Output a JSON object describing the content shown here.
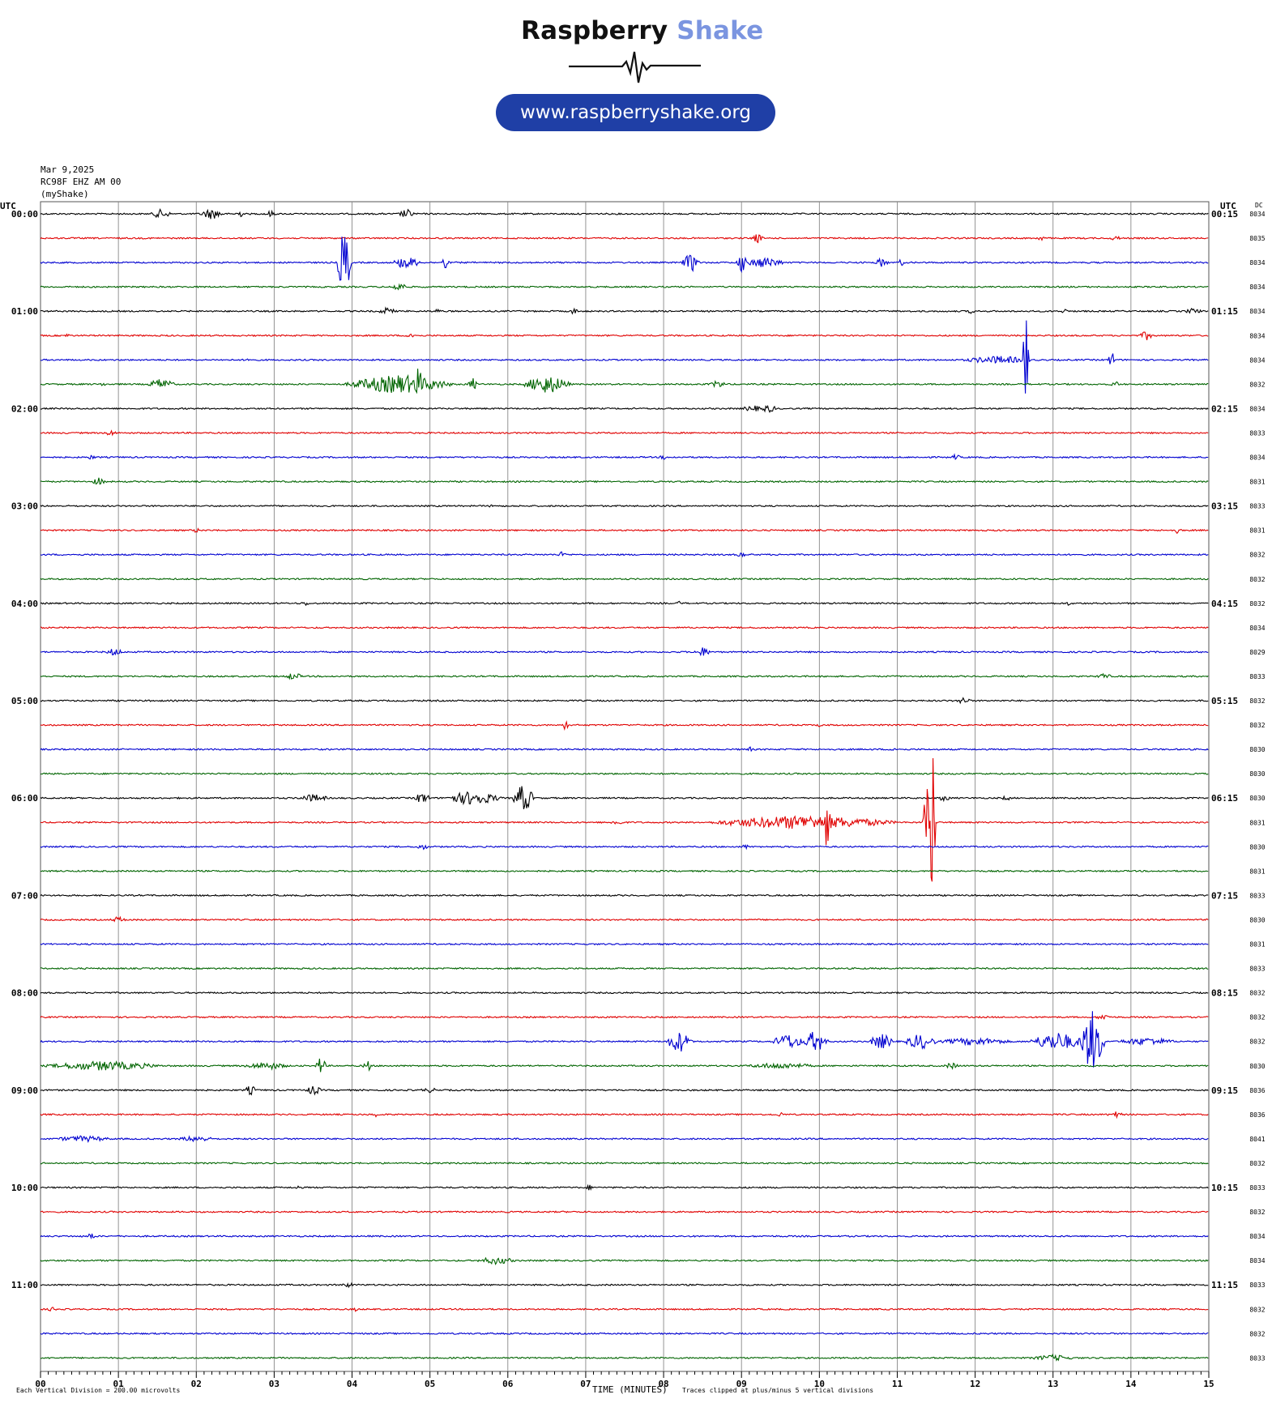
{
  "brand": {
    "name_part1": "Raspberry",
    "name_part2": "Shake",
    "url": "www.raspberryshake.org"
  },
  "header": {
    "date": "Mar 9,2025",
    "station": "RC98F EHZ AM 00",
    "source": "(myShake)"
  },
  "colors": {
    "trace_cycle": [
      "#000000",
      "#e00000",
      "#0000d0",
      "#006400"
    ],
    "grid": "#888888"
  },
  "chart_data": {
    "type": "line",
    "title": "",
    "xlabel": "TIME (MINUTES)",
    "ylabel": "",
    "x_range": [
      0,
      15
    ],
    "x_ticks": [
      "00",
      "01",
      "02",
      "03",
      "04",
      "05",
      "06",
      "07",
      "08",
      "09",
      "10",
      "11",
      "12",
      "13",
      "14",
      "15"
    ],
    "left_axis_title": "UTC",
    "right_axis_title": "UTC",
    "dc_title": "DC",
    "row_minutes": 15,
    "left_times": [
      "00:00",
      "01:00",
      "02:00",
      "03:00",
      "04:00",
      "05:00",
      "06:00",
      "07:00",
      "08:00",
      "09:00",
      "10:00",
      "11:00"
    ],
    "right_times": [
      "00:15",
      "01:15",
      "02:15",
      "03:15",
      "04:15",
      "05:15",
      "06:15",
      "07:15",
      "08:15",
      "09:15",
      "10:15",
      "11:15"
    ],
    "dc_values": [
      "8034",
      "8035",
      "8034",
      "8034",
      "8034",
      "8034",
      "8034",
      "8032",
      "8034",
      "8033",
      "8034",
      "8031",
      "8033",
      "8031",
      "8032",
      "8032",
      "8032",
      "8034",
      "8029",
      "8033",
      "8032",
      "8032",
      "8030",
      "8030",
      "8030",
      "8031",
      "8030",
      "8031",
      "8033",
      "8030",
      "8031",
      "8033",
      "8032",
      "8032",
      "8032",
      "8030",
      "8036",
      "8036",
      "8041",
      "8032",
      "8033",
      "8032",
      "8034",
      "8034",
      "8033",
      "8032",
      "8032",
      "8033"
    ],
    "vertical_division": "Each Vertical Division = 200.00 microvolts",
    "clip_note": "Traces clipped at plus/minus 5 vertical divisions",
    "events": [
      {
        "row": 0,
        "t": 1.55,
        "amp": 6,
        "dur": 0.25
      },
      {
        "row": 0,
        "t": 2.2,
        "amp": 7,
        "dur": 0.3
      },
      {
        "row": 0,
        "t": 2.55,
        "amp": 5,
        "dur": 0.1
      },
      {
        "row": 0,
        "t": 2.95,
        "amp": 4,
        "dur": 0.15
      },
      {
        "row": 0,
        "t": 4.7,
        "amp": 6,
        "dur": 0.2
      },
      {
        "row": 1,
        "t": 9.2,
        "amp": 6,
        "dur": 0.15
      },
      {
        "row": 1,
        "t": 12.85,
        "amp": 3,
        "dur": 0.15
      },
      {
        "row": 1,
        "t": 13.8,
        "amp": 4,
        "dur": 0.1
      },
      {
        "row": 2,
        "t": 3.9,
        "amp": 45,
        "dur": 0.15
      },
      {
        "row": 2,
        "t": 4.7,
        "amp": 8,
        "dur": 0.35
      },
      {
        "row": 2,
        "t": 5.2,
        "amp": 12,
        "dur": 0.05
      },
      {
        "row": 2,
        "t": 8.35,
        "amp": 12,
        "dur": 0.2
      },
      {
        "row": 2,
        "t": 9.0,
        "amp": 14,
        "dur": 0.1
      },
      {
        "row": 2,
        "t": 9.3,
        "amp": 7,
        "dur": 0.5
      },
      {
        "row": 2,
        "t": 10.8,
        "amp": 6,
        "dur": 0.15
      },
      {
        "row": 2,
        "t": 11.05,
        "amp": 5,
        "dur": 0.05
      },
      {
        "row": 3,
        "t": 4.6,
        "amp": 6,
        "dur": 0.2
      },
      {
        "row": 4,
        "t": 4.45,
        "amp": 5,
        "dur": 0.2
      },
      {
        "row": 4,
        "t": 5.1,
        "amp": 3,
        "dur": 0.1
      },
      {
        "row": 4,
        "t": 6.85,
        "amp": 4,
        "dur": 0.1
      },
      {
        "row": 4,
        "t": 11.95,
        "amp": 3,
        "dur": 0.1
      },
      {
        "row": 4,
        "t": 13.15,
        "amp": 3,
        "dur": 0.1
      },
      {
        "row": 4,
        "t": 14.8,
        "amp": 4,
        "dur": 0.2
      },
      {
        "row": 5,
        "t": 0.35,
        "amp": 3,
        "dur": 0.05
      },
      {
        "row": 5,
        "t": 4.75,
        "amp": 5,
        "dur": 0.1
      },
      {
        "row": 5,
        "t": 14.2,
        "amp": 6,
        "dur": 0.15
      },
      {
        "row": 6,
        "t": 2.65,
        "amp": 3,
        "dur": 0.05
      },
      {
        "row": 6,
        "t": 12.3,
        "amp": 5,
        "dur": 1.0
      },
      {
        "row": 6,
        "t": 12.65,
        "amp": 65,
        "dur": 0.05
      },
      {
        "row": 6,
        "t": 13.75,
        "amp": 12,
        "dur": 0.05
      },
      {
        "row": 7,
        "t": 0.8,
        "amp": 3,
        "dur": 0.05
      },
      {
        "row": 7,
        "t": 1.55,
        "amp": 7,
        "dur": 0.35
      },
      {
        "row": 7,
        "t": 4.6,
        "amp": 12,
        "dur": 1.4
      },
      {
        "row": 7,
        "t": 4.85,
        "amp": 22,
        "dur": 0.1
      },
      {
        "row": 7,
        "t": 5.55,
        "amp": 8,
        "dur": 0.1
      },
      {
        "row": 7,
        "t": 6.5,
        "amp": 12,
        "dur": 0.6
      },
      {
        "row": 7,
        "t": 8.7,
        "amp": 5,
        "dur": 0.2
      },
      {
        "row": 7,
        "t": 13.8,
        "amp": 4,
        "dur": 0.1
      },
      {
        "row": 8,
        "t": 9.15,
        "amp": 4,
        "dur": 0.3
      },
      {
        "row": 8,
        "t": 9.35,
        "amp": 5,
        "dur": 0.2
      },
      {
        "row": 9,
        "t": 0.9,
        "amp": 4,
        "dur": 0.15
      },
      {
        "row": 10,
        "t": 0.65,
        "amp": 3,
        "dur": 0.1
      },
      {
        "row": 10,
        "t": 8.0,
        "amp": 3,
        "dur": 0.1
      },
      {
        "row": 10,
        "t": 11.75,
        "amp": 4,
        "dur": 0.1
      },
      {
        "row": 11,
        "t": 0.75,
        "amp": 5,
        "dur": 0.15
      },
      {
        "row": 12,
        "t": 5.8,
        "amp": 2,
        "dur": 0.1
      },
      {
        "row": 13,
        "t": 2.0,
        "amp": 3,
        "dur": 0.1
      },
      {
        "row": 13,
        "t": 14.6,
        "amp": 4,
        "dur": 0.1
      },
      {
        "row": 14,
        "t": 6.7,
        "amp": 4,
        "dur": 0.1
      },
      {
        "row": 14,
        "t": 9.0,
        "amp": 4,
        "dur": 0.1
      },
      {
        "row": 16,
        "t": 3.4,
        "amp": 3,
        "dur": 0.1
      },
      {
        "row": 16,
        "t": 8.2,
        "amp": 3,
        "dur": 0.05
      },
      {
        "row": 16,
        "t": 13.2,
        "amp": 3,
        "dur": 0.05
      },
      {
        "row": 18,
        "t": 0.95,
        "amp": 5,
        "dur": 0.2
      },
      {
        "row": 18,
        "t": 8.5,
        "amp": 6,
        "dur": 0.2
      },
      {
        "row": 19,
        "t": 3.25,
        "amp": 5,
        "dur": 0.2
      },
      {
        "row": 19,
        "t": 13.65,
        "amp": 4,
        "dur": 0.2
      },
      {
        "row": 20,
        "t": 11.85,
        "amp": 5,
        "dur": 0.15
      },
      {
        "row": 21,
        "t": 6.75,
        "amp": 8,
        "dur": 0.05
      },
      {
        "row": 21,
        "t": 10.0,
        "amp": 3,
        "dur": 0.05
      },
      {
        "row": 22,
        "t": 9.1,
        "amp": 4,
        "dur": 0.05
      },
      {
        "row": 22,
        "t": 10.95,
        "amp": 4,
        "dur": 0.05
      },
      {
        "row": 24,
        "t": 3.5,
        "amp": 5,
        "dur": 0.4
      },
      {
        "row": 24,
        "t": 4.9,
        "amp": 7,
        "dur": 0.2
      },
      {
        "row": 24,
        "t": 5.55,
        "amp": 9,
        "dur": 0.75
      },
      {
        "row": 24,
        "t": 6.2,
        "amp": 18,
        "dur": 0.25
      },
      {
        "row": 24,
        "t": 11.6,
        "amp": 4,
        "dur": 0.15
      },
      {
        "row": 24,
        "t": 12.4,
        "amp": 3,
        "dur": 0.15
      },
      {
        "row": 25,
        "t": 7.4,
        "amp": 4,
        "dur": 0.15
      },
      {
        "row": 25,
        "t": 9.8,
        "amp": 9,
        "dur": 2.5
      },
      {
        "row": 25,
        "t": 10.1,
        "amp": 38,
        "dur": 0.05
      },
      {
        "row": 25,
        "t": 11.4,
        "amp": 60,
        "dur": 0.1
      },
      {
        "row": 25,
        "t": 11.45,
        "amp": 120,
        "dur": 0.05
      },
      {
        "row": 26,
        "t": 4.9,
        "amp": 4,
        "dur": 0.15
      },
      {
        "row": 26,
        "t": 9.05,
        "amp": 3,
        "dur": 0.1
      },
      {
        "row": 29,
        "t": 1.0,
        "amp": 4,
        "dur": 0.2
      },
      {
        "row": 33,
        "t": 13.65,
        "amp": 4,
        "dur": 0.2
      },
      {
        "row": 34,
        "t": 8.2,
        "amp": 14,
        "dur": 0.3
      },
      {
        "row": 34,
        "t": 9.6,
        "amp": 10,
        "dur": 0.4
      },
      {
        "row": 34,
        "t": 9.95,
        "amp": 14,
        "dur": 0.3
      },
      {
        "row": 34,
        "t": 10.8,
        "amp": 10,
        "dur": 0.3
      },
      {
        "row": 34,
        "t": 11.3,
        "amp": 10,
        "dur": 0.4
      },
      {
        "row": 34,
        "t": 12.0,
        "amp": 5,
        "dur": 1.0
      },
      {
        "row": 34,
        "t": 13.05,
        "amp": 12,
        "dur": 0.7
      },
      {
        "row": 34,
        "t": 13.5,
        "amp": 40,
        "dur": 0.3
      },
      {
        "row": 34,
        "t": 14.2,
        "amp": 5,
        "dur": 0.8
      },
      {
        "row": 35,
        "t": 0.8,
        "amp": 6,
        "dur": 1.6
      },
      {
        "row": 35,
        "t": 2.9,
        "amp": 5,
        "dur": 0.6
      },
      {
        "row": 35,
        "t": 3.6,
        "amp": 12,
        "dur": 0.1
      },
      {
        "row": 35,
        "t": 4.2,
        "amp": 7,
        "dur": 0.1
      },
      {
        "row": 35,
        "t": 9.5,
        "amp": 4,
        "dur": 1.0
      },
      {
        "row": 35,
        "t": 11.7,
        "amp": 4,
        "dur": 0.2
      },
      {
        "row": 36,
        "t": 2.7,
        "amp": 6,
        "dur": 0.15
      },
      {
        "row": 36,
        "t": 3.5,
        "amp": 6,
        "dur": 0.2
      },
      {
        "row": 36,
        "t": 5.0,
        "amp": 3,
        "dur": 0.3
      },
      {
        "row": 37,
        "t": 4.3,
        "amp": 5,
        "dur": 0.05
      },
      {
        "row": 37,
        "t": 9.5,
        "amp": 4,
        "dur": 0.05
      },
      {
        "row": 37,
        "t": 13.8,
        "amp": 4,
        "dur": 0.2
      },
      {
        "row": 38,
        "t": 0.55,
        "amp": 4,
        "dur": 0.8
      },
      {
        "row": 38,
        "t": 2.0,
        "amp": 4,
        "dur": 0.5
      },
      {
        "row": 40,
        "t": 3.3,
        "amp": 3,
        "dur": 0.05
      },
      {
        "row": 40,
        "t": 7.05,
        "amp": 4,
        "dur": 0.05
      },
      {
        "row": 42,
        "t": 0.65,
        "amp": 7,
        "dur": 0.05
      },
      {
        "row": 43,
        "t": 5.85,
        "amp": 5,
        "dur": 0.5
      },
      {
        "row": 44,
        "t": 3.95,
        "amp": 3,
        "dur": 0.2
      },
      {
        "row": 45,
        "t": 0.15,
        "amp": 3,
        "dur": 0.1
      },
      {
        "row": 45,
        "t": 4.05,
        "amp": 3,
        "dur": 0.05
      },
      {
        "row": 47,
        "t": 13.0,
        "amp": 4,
        "dur": 0.6
      }
    ]
  }
}
